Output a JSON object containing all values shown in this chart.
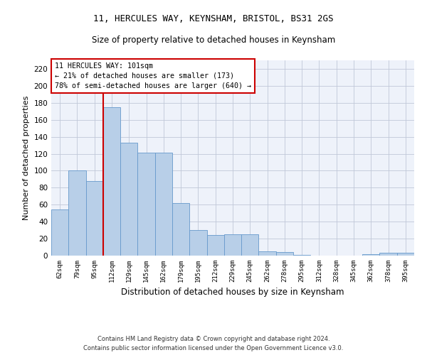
{
  "title1": "11, HERCULES WAY, KEYNSHAM, BRISTOL, BS31 2GS",
  "title2": "Size of property relative to detached houses in Keynsham",
  "xlabel": "Distribution of detached houses by size in Keynsham",
  "ylabel": "Number of detached properties",
  "categories": [
    "62sqm",
    "79sqm",
    "95sqm",
    "112sqm",
    "129sqm",
    "145sqm",
    "162sqm",
    "179sqm",
    "195sqm",
    "212sqm",
    "229sqm",
    "245sqm",
    "262sqm",
    "278sqm",
    "295sqm",
    "312sqm",
    "328sqm",
    "345sqm",
    "362sqm",
    "378sqm",
    "395sqm"
  ],
  "values": [
    54,
    100,
    88,
    175,
    133,
    121,
    121,
    62,
    30,
    24,
    25,
    25,
    5,
    4,
    1,
    0,
    0,
    0,
    2,
    3,
    3
  ],
  "bar_color": "#b8cfe8",
  "bar_edge_color": "#6699cc",
  "vline_x": 2.5,
  "annotation_line1": "11 HERCULES WAY: 101sqm",
  "annotation_line2": "← 21% of detached houses are smaller (173)",
  "annotation_line3": "78% of semi-detached houses are larger (640) →",
  "annotation_box_color": "#ffffff",
  "annotation_box_edge_color": "#cc0000",
  "vline_color": "#cc0000",
  "ylim": [
    0,
    230
  ],
  "yticks": [
    0,
    20,
    40,
    60,
    80,
    100,
    120,
    140,
    160,
    180,
    200,
    220
  ],
  "footer1": "Contains HM Land Registry data © Crown copyright and database right 2024.",
  "footer2": "Contains public sector information licensed under the Open Government Licence v3.0.",
  "bg_color": "#ffffff",
  "plot_bg_color": "#eef2fa",
  "grid_color": "#c0c8d8"
}
